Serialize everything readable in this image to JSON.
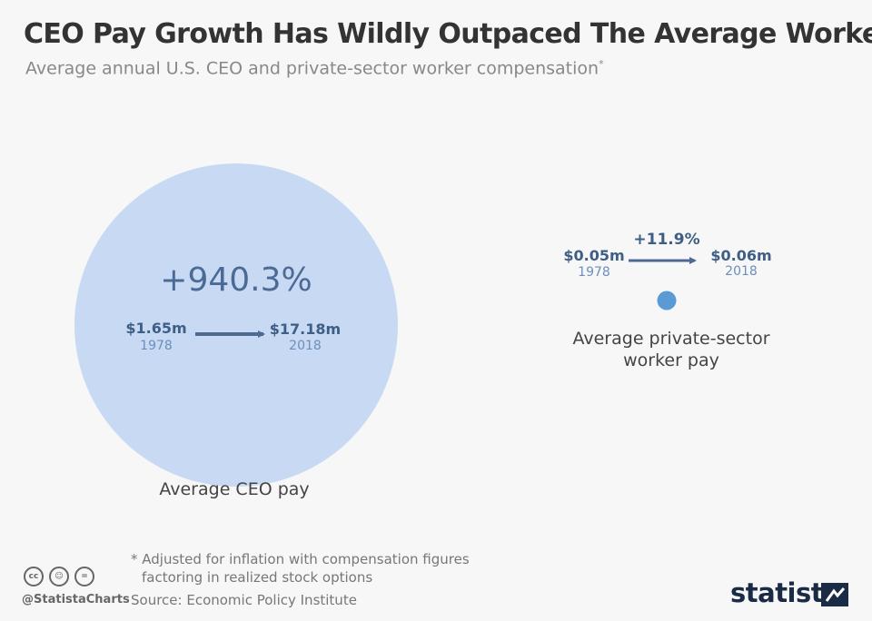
{
  "title": "CEO Pay Growth Has Wildly Outpaced The Average Worker",
  "subtitle": "Average annual U.S. CEO and private-sector worker compensation",
  "subtitle_marker": "*",
  "chart_data": {
    "type": "bubble",
    "series": [
      {
        "name": "Average CEO pay",
        "start_year": "1978",
        "end_year": "2018",
        "start_value_label": "$1.65m",
        "end_value_label": "$17.18m",
        "start_value": 1.65,
        "end_value": 17.18,
        "change_label": "+940.3%",
        "change_pct": 940.3,
        "color": "#c8daf3"
      },
      {
        "name": "Average private-sector worker pay",
        "name_line1": "Average private-sector",
        "name_line2": "worker pay",
        "start_year": "1978",
        "end_year": "2018",
        "start_value_label": "$0.05m",
        "end_value_label": "$0.06m",
        "start_value": 0.05,
        "end_value": 0.06,
        "change_label": "+11.9%",
        "change_pct": 11.9,
        "color": "#5b9bd5"
      }
    ]
  },
  "colors": {
    "arrow": "#4e6a93"
  },
  "footnote": {
    "line1": "* Adjusted for inflation with compensation figures",
    "line2": "factoring in realized stock options"
  },
  "source": "Source: Economic Policy Institute",
  "credit": {
    "handle": "@StatistaCharts",
    "icons": [
      "cc-icon",
      "by-icon",
      "nd-icon"
    ]
  },
  "brand": "statista"
}
